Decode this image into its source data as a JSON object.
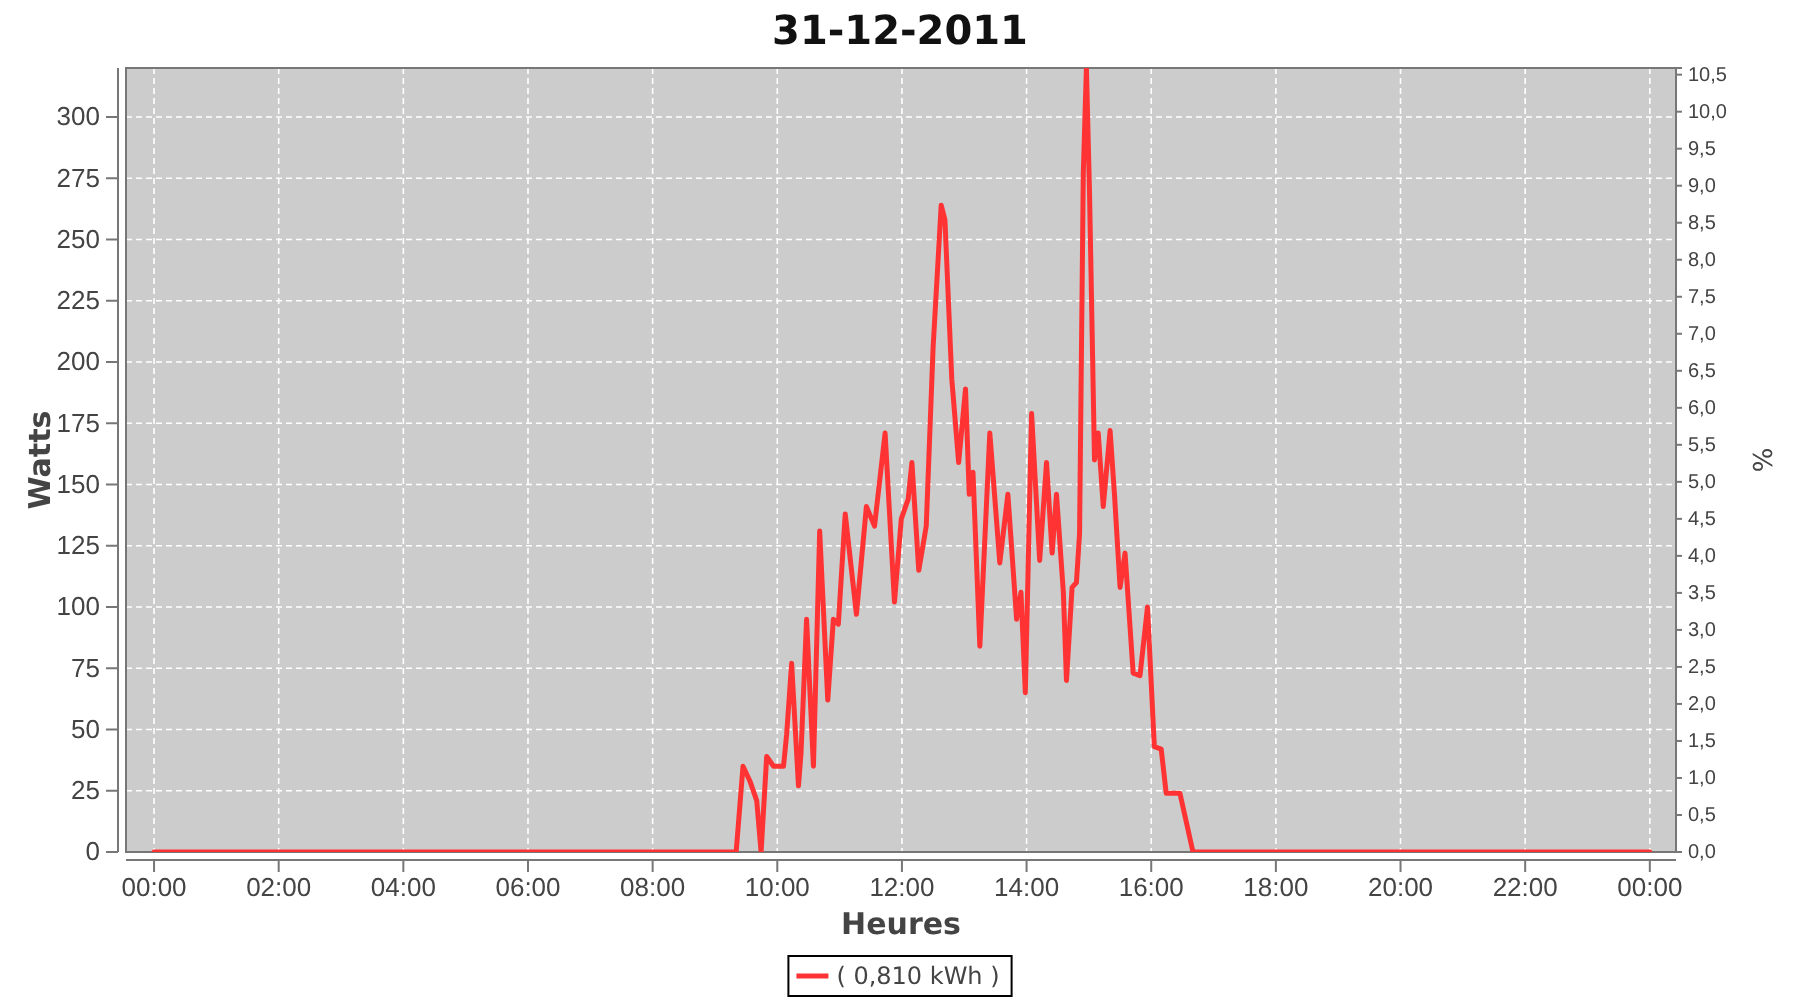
{
  "chart_data": {
    "type": "line",
    "title": "31-12-2011",
    "xlabel": "Heures",
    "ylabel": "Watts",
    "y2label": "%",
    "x": [
      0,
      9.34,
      9.45,
      9.56,
      9.67,
      9.74,
      9.83,
      9.94,
      10.1,
      10.15,
      10.23,
      10.34,
      10.38,
      10.47,
      10.58,
      10.68,
      10.81,
      10.9,
      10.98,
      11.09,
      11.27,
      11.43,
      11.56,
      11.73,
      11.88,
      11.99,
      12.1,
      12.16,
      12.27,
      12.39,
      12.5,
      12.63,
      12.69,
      12.8,
      12.91,
      13.02,
      13.08,
      13.14,
      13.25,
      13.41,
      13.57,
      13.7,
      13.84,
      13.91,
      13.98,
      14.08,
      14.21,
      14.32,
      14.41,
      14.48,
      14.59,
      14.64,
      14.73,
      14.8,
      14.85,
      14.91,
      14.96,
      15.01,
      15.09,
      15.15,
      15.23,
      15.34,
      15.41,
      15.5,
      15.58,
      15.71,
      15.82,
      15.94,
      16.05,
      16.16,
      16.24,
      16.46,
      16.67,
      24
    ],
    "series": [
      {
        "name": "( 0,810 kWh )",
        "color": "#ff3333",
        "values": [
          0,
          0,
          35,
          29,
          21,
          0,
          39,
          35,
          35,
          48,
          77,
          27,
          40,
          95,
          35,
          131,
          62,
          95,
          93,
          138,
          97,
          141,
          133,
          171,
          102,
          136,
          144,
          159,
          115,
          133,
          206,
          264,
          258,
          193,
          159,
          189,
          146,
          155,
          84,
          171,
          118,
          146,
          95,
          106,
          65,
          179,
          119,
          159,
          122,
          146,
          106,
          70,
          108,
          110,
          130,
          277,
          320,
          269,
          160,
          171,
          141,
          172,
          146,
          108,
          122,
          73,
          72,
          100,
          43,
          42,
          24,
          24,
          0,
          0
        ]
      }
    ],
    "xlim": [
      -0.45,
      24.42
    ],
    "xticks": [
      {
        "value": 0,
        "label": "00:00"
      },
      {
        "value": 2,
        "label": "02:00"
      },
      {
        "value": 4,
        "label": "04:00"
      },
      {
        "value": 6,
        "label": "06:00"
      },
      {
        "value": 8,
        "label": "08:00"
      },
      {
        "value": 10,
        "label": "10:00"
      },
      {
        "value": 12,
        "label": "12:00"
      },
      {
        "value": 14,
        "label": "14:00"
      },
      {
        "value": 16,
        "label": "16:00"
      },
      {
        "value": 18,
        "label": "18:00"
      },
      {
        "value": 20,
        "label": "20:00"
      },
      {
        "value": 22,
        "label": "22:00"
      },
      {
        "value": 24,
        "label": "00:00"
      }
    ],
    "ylim": [
      0,
      320
    ],
    "yticks": [
      0,
      25,
      50,
      75,
      100,
      125,
      150,
      175,
      200,
      225,
      250,
      275,
      300
    ],
    "y2lim": [
      0,
      10.59
    ],
    "y2ticks": [
      {
        "value": 0,
        "label": "0,0"
      },
      {
        "value": 0.5,
        "label": "0,5"
      },
      {
        "value": 1,
        "label": "1,0"
      },
      {
        "value": 1.5,
        "label": "1,5"
      },
      {
        "value": 2,
        "label": "2,0"
      },
      {
        "value": 2.5,
        "label": "2,5"
      },
      {
        "value": 3,
        "label": "3,0"
      },
      {
        "value": 3.5,
        "label": "3,5"
      },
      {
        "value": 4,
        "label": "4,0"
      },
      {
        "value": 4.5,
        "label": "4,5"
      },
      {
        "value": 5,
        "label": "5,0"
      },
      {
        "value": 5.5,
        "label": "5,5"
      },
      {
        "value": 6,
        "label": "6,0"
      },
      {
        "value": 6.5,
        "label": "6,5"
      },
      {
        "value": 7,
        "label": "7,0"
      },
      {
        "value": 7.5,
        "label": "7,5"
      },
      {
        "value": 8,
        "label": "8,0"
      },
      {
        "value": 8.5,
        "label": "8,5"
      },
      {
        "value": 9,
        "label": "9,0"
      },
      {
        "value": 9.5,
        "label": "9,5"
      },
      {
        "value": 10,
        "label": "10,0"
      },
      {
        "value": 10.5,
        "label": "10,5"
      }
    ],
    "grid": true,
    "legend": "bottom",
    "marker": "none",
    "line_style": "solid"
  }
}
